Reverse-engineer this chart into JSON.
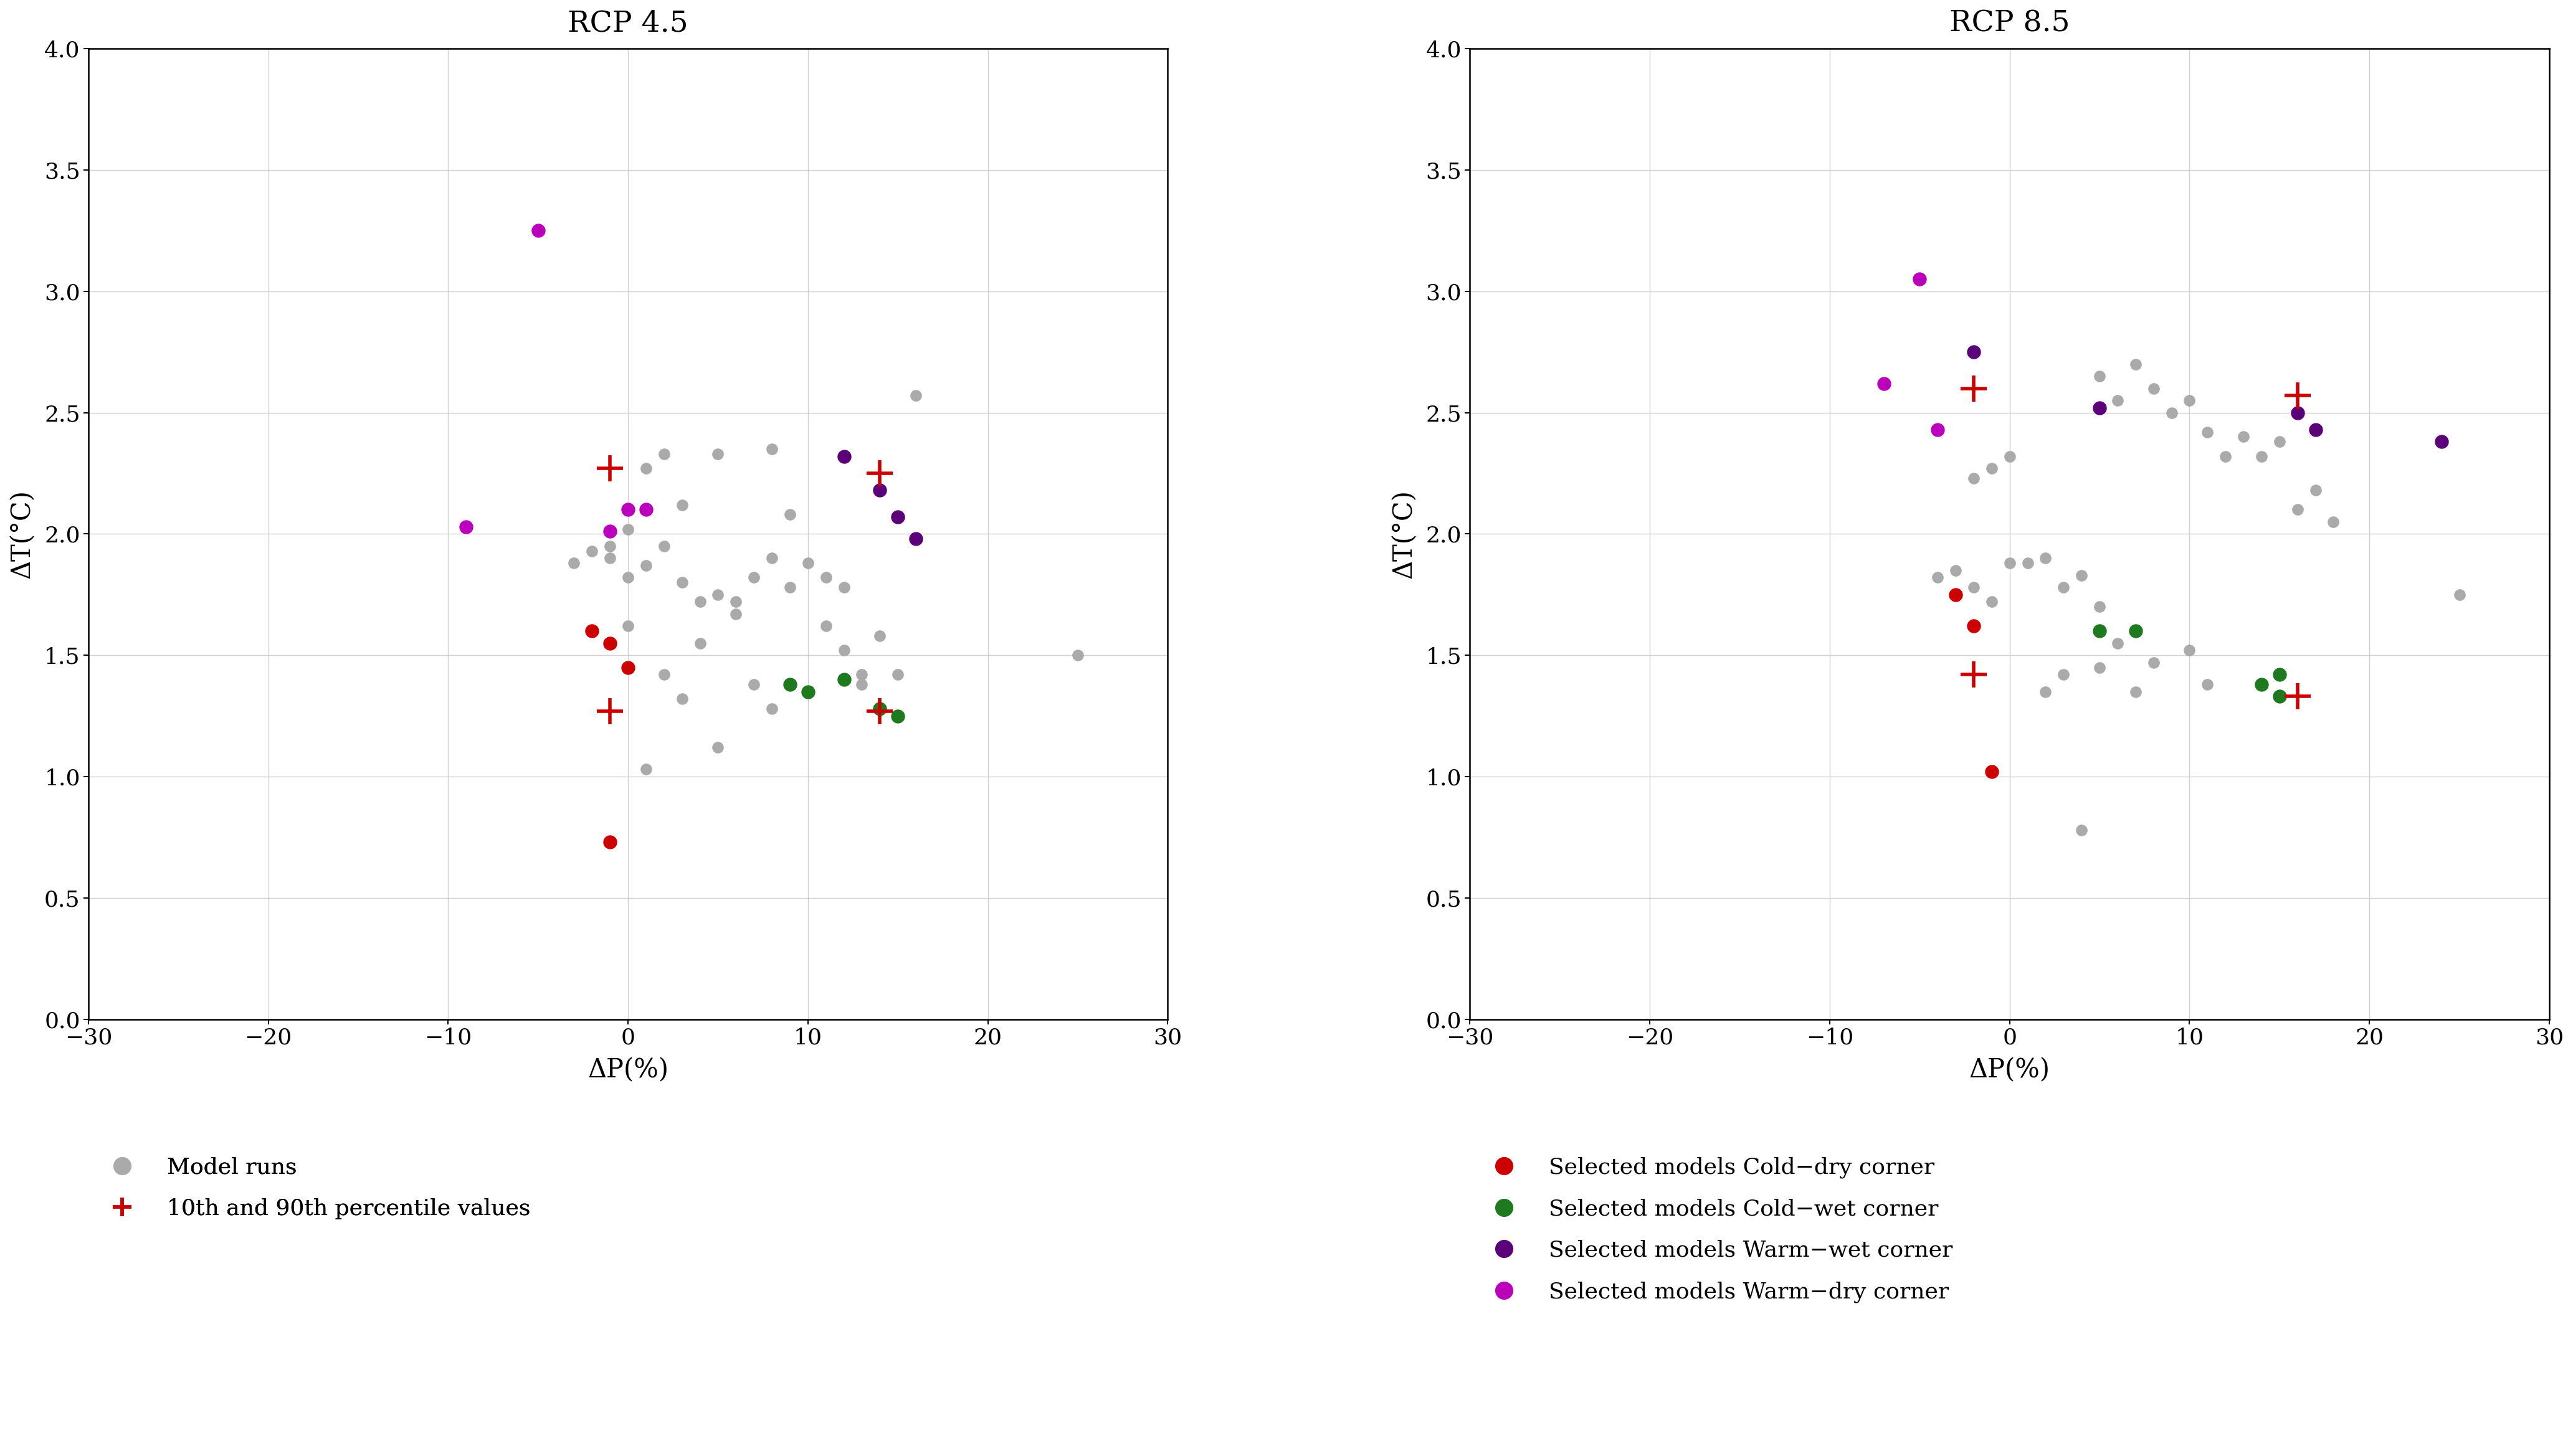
{
  "title_left": "RCP 4.5",
  "title_right": "RCP 8.5",
  "xlabel": "ΔP(%)",
  "ylabel": "ΔT(°C)",
  "xlim": [
    -30,
    30
  ],
  "ylim": [
    0.0,
    4.0
  ],
  "xticks": [
    -30,
    -20,
    -10,
    0,
    10,
    20,
    30
  ],
  "yticks": [
    0.0,
    0.5,
    1.0,
    1.5,
    2.0,
    2.5,
    3.0,
    3.5,
    4.0
  ],
  "rcp45": {
    "gray_points": [
      [
        -3,
        1.88
      ],
      [
        -2,
        1.93
      ],
      [
        -1,
        1.9
      ],
      [
        0,
        1.82
      ],
      [
        1,
        1.87
      ],
      [
        2,
        1.95
      ],
      [
        3,
        1.8
      ],
      [
        4,
        1.72
      ],
      [
        5,
        1.75
      ],
      [
        6,
        1.67
      ],
      [
        7,
        1.82
      ],
      [
        8,
        1.9
      ],
      [
        9,
        2.08
      ],
      [
        9,
        1.78
      ],
      [
        10,
        1.88
      ],
      [
        11,
        1.82
      ],
      [
        11,
        1.62
      ],
      [
        12,
        1.52
      ],
      [
        12,
        1.78
      ],
      [
        13,
        1.38
      ],
      [
        13,
        1.42
      ],
      [
        14,
        1.58
      ],
      [
        15,
        1.42
      ],
      [
        16,
        2.57
      ],
      [
        1,
        1.03
      ],
      [
        5,
        1.12
      ],
      [
        7,
        1.38
      ],
      [
        8,
        1.28
      ],
      [
        3,
        1.32
      ],
      [
        2,
        1.42
      ],
      [
        4,
        1.55
      ],
      [
        6,
        1.72
      ],
      [
        0,
        1.62
      ],
      [
        25,
        1.5
      ],
      [
        -1,
        1.95
      ],
      [
        0,
        2.02
      ],
      [
        1,
        2.27
      ],
      [
        2,
        2.33
      ],
      [
        5,
        2.33
      ],
      [
        3,
        2.12
      ],
      [
        8,
        2.35
      ]
    ],
    "red_points": [
      [
        -2,
        1.6
      ],
      [
        -1,
        1.55
      ],
      [
        0,
        1.45
      ],
      [
        -1,
        0.73
      ]
    ],
    "green_points": [
      [
        9,
        1.38
      ],
      [
        10,
        1.35
      ],
      [
        12,
        1.4
      ],
      [
        14,
        1.28
      ],
      [
        15,
        1.25
      ]
    ],
    "dark_purple_points": [
      [
        12,
        2.32
      ],
      [
        14,
        2.18
      ],
      [
        15,
        2.07
      ],
      [
        16,
        1.98
      ]
    ],
    "magenta_points": [
      [
        -9,
        2.03
      ],
      [
        -1,
        2.01
      ],
      [
        0,
        2.1
      ],
      [
        1,
        2.1
      ],
      [
        -5,
        3.25
      ]
    ],
    "cross_points": [
      [
        -1,
        2.27
      ],
      [
        -1,
        1.27
      ],
      [
        14,
        2.25
      ],
      [
        14,
        1.27
      ]
    ]
  },
  "rcp85": {
    "gray_points": [
      [
        -4,
        1.82
      ],
      [
        -3,
        1.85
      ],
      [
        -2,
        1.78
      ],
      [
        -1,
        1.72
      ],
      [
        0,
        1.88
      ],
      [
        1,
        1.88
      ],
      [
        2,
        1.9
      ],
      [
        3,
        1.78
      ],
      [
        4,
        1.83
      ],
      [
        5,
        1.7
      ],
      [
        5,
        2.65
      ],
      [
        6,
        2.55
      ],
      [
        7,
        2.7
      ],
      [
        8,
        2.6
      ],
      [
        9,
        2.5
      ],
      [
        10,
        2.55
      ],
      [
        11,
        2.42
      ],
      [
        12,
        2.32
      ],
      [
        13,
        2.4
      ],
      [
        14,
        2.32
      ],
      [
        15,
        2.38
      ],
      [
        16,
        2.1
      ],
      [
        17,
        2.18
      ],
      [
        18,
        2.05
      ],
      [
        2,
        1.35
      ],
      [
        3,
        1.42
      ],
      [
        5,
        1.45
      ],
      [
        6,
        1.55
      ],
      [
        7,
        1.35
      ],
      [
        8,
        1.47
      ],
      [
        10,
        1.52
      ],
      [
        11,
        1.38
      ],
      [
        4,
        0.78
      ],
      [
        25,
        1.75
      ],
      [
        -2,
        2.23
      ],
      [
        -1,
        2.27
      ],
      [
        0,
        2.32
      ]
    ],
    "red_points": [
      [
        -3,
        1.75
      ],
      [
        -2,
        1.62
      ],
      [
        -1,
        1.02
      ]
    ],
    "green_points": [
      [
        5,
        1.6
      ],
      [
        7,
        1.6
      ],
      [
        14,
        1.38
      ],
      [
        15,
        1.42
      ],
      [
        15,
        1.33
      ]
    ],
    "dark_purple_points": [
      [
        -2,
        2.75
      ],
      [
        5,
        2.52
      ],
      [
        16,
        2.5
      ],
      [
        17,
        2.43
      ],
      [
        24,
        2.38
      ]
    ],
    "magenta_points": [
      [
        -5,
        3.05
      ],
      [
        -7,
        2.62
      ],
      [
        -4,
        2.43
      ]
    ],
    "cross_points": [
      [
        -2,
        1.42
      ],
      [
        -2,
        2.6
      ],
      [
        16,
        1.33
      ],
      [
        16,
        2.57
      ]
    ]
  },
  "colors": {
    "gray": "#aaaaaa",
    "red": "#cc0000",
    "green": "#1f7a1f",
    "dark_purple": "#5c007a",
    "magenta": "#bb00bb",
    "cross": "#cc0000"
  },
  "marker_size": 180,
  "selected_marker_size": 260,
  "legend": {
    "model_runs_color": "#aaaaaa",
    "cross_color": "#cc0000",
    "cold_dry_color": "#cc0000",
    "cold_wet_color": "#1f7a1f",
    "warm_wet_color": "#5c007a",
    "warm_dry_color": "#bb00bb",
    "labels": [
      "Model runs",
      "10th and 90th percentile values",
      "Selected models Cold−dry corner",
      "Selected models Cold−wet corner",
      "Selected models Warm−wet corner",
      "Selected models Warm−dry corner"
    ]
  }
}
